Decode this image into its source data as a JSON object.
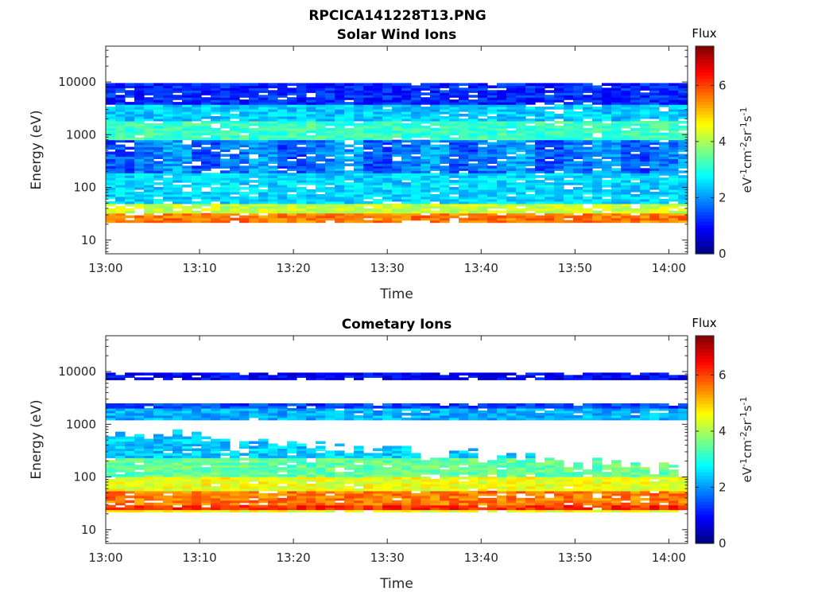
{
  "figure": {
    "title": "RPCICA141228T13.PNG"
  },
  "colormap": "jet",
  "chart_data": [
    {
      "type": "heatmap",
      "title": "Solar Wind Ions",
      "xlabel": "Time",
      "ylabel": "Energy (eV)",
      "x_ticks": [
        "13:00",
        "13:10",
        "13:20",
        "13:30",
        "13:40",
        "13:50",
        "14:00"
      ],
      "y_ticks": [
        "10",
        "100",
        "1000",
        "10000"
      ],
      "y_scale": "log",
      "xlim": [
        "13:00",
        "14:02"
      ],
      "colorbar": {
        "title": "Flux",
        "label": "eV-1cm-2sr-1s-1",
        "ticks": [
          0,
          2,
          4,
          6
        ],
        "range": [
          0,
          7.4
        ]
      }
    },
    {
      "type": "heatmap",
      "title": "Cometary Ions",
      "xlabel": "Time",
      "ylabel": "Energy (eV)",
      "x_ticks": [
        "13:00",
        "13:10",
        "13:20",
        "13:30",
        "13:40",
        "13:50",
        "14:00"
      ],
      "y_ticks": [
        "10",
        "100",
        "1000",
        "10000"
      ],
      "y_scale": "log",
      "xlim": [
        "13:00",
        "14:02"
      ],
      "colorbar": {
        "title": "Flux",
        "label": "eV-1cm-2sr-1s-1",
        "ticks": [
          0,
          2,
          4,
          6
        ],
        "range": [
          0,
          7.4
        ]
      }
    }
  ]
}
